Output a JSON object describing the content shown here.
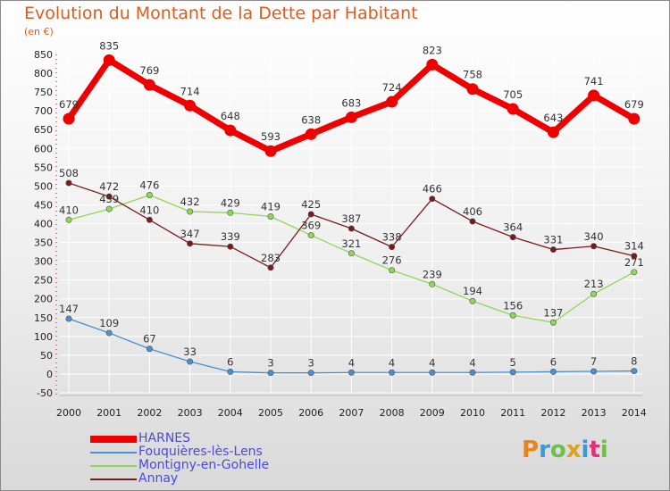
{
  "page": {
    "title": "Evolution du Montant de la Dette par Habitant",
    "subtitle": "(en €)"
  },
  "logo": {
    "text": "Proxiti",
    "colors": [
      "#e8841c",
      "#3a9ad8",
      "#6cc04a",
      "#e0a020",
      "#3a9ad8",
      "#e0307a",
      "#6cc04a"
    ]
  },
  "chart_data": {
    "type": "line",
    "title": "Evolution du Montant de la Dette par Habitant",
    "ylabel": "(en €)",
    "xlabel": "",
    "x": [
      "2000",
      "2001",
      "2002",
      "2003",
      "2004",
      "2005",
      "2006",
      "2007",
      "2008",
      "2009",
      "2010",
      "2011",
      "2012",
      "2013",
      "2014"
    ],
    "ylim": [
      -50,
      850
    ],
    "yticks": [
      "-50",
      "0",
      "50",
      "100",
      "150",
      "200",
      "250",
      "300",
      "350",
      "400",
      "450",
      "500",
      "550",
      "600",
      "650",
      "700",
      "750",
      "800",
      "850"
    ],
    "grid": true,
    "legend_position": "bottom-left",
    "series": [
      {
        "name": "HARNES",
        "color": "#ee0000",
        "values": [
          679,
          835,
          769,
          714,
          648,
          593,
          638,
          683,
          724,
          823,
          758,
          705,
          643,
          741,
          679
        ],
        "labels": [
          "679",
          "835",
          "769",
          "714",
          "648",
          "593",
          "638",
          "683",
          "724",
          "823",
          "758",
          "705",
          "643",
          "741",
          "679"
        ]
      },
      {
        "name": "Fouquières-lès-Lens",
        "color": "#4a90d0",
        "values": [
          147,
          109,
          67,
          33,
          6,
          3,
          3,
          4,
          4,
          4,
          4,
          5,
          6,
          7,
          8
        ],
        "labels": [
          "147",
          "109",
          "67",
          "33",
          "6",
          "3",
          "3",
          "4",
          "4",
          "4",
          "4",
          "5",
          "6",
          "7",
          "8"
        ]
      },
      {
        "name": "Montigny-en-Gohelle",
        "color": "#8fd855",
        "values": [
          410,
          439,
          476,
          432,
          429,
          419,
          369,
          321,
          276,
          239,
          194,
          156,
          137,
          213,
          271
        ],
        "labels": [
          "410",
          "439",
          "476",
          "432",
          "429",
          "419",
          "369",
          "321",
          "276",
          "239",
          "194",
          "156",
          "137",
          "213",
          "271"
        ]
      },
      {
        "name": "Annay",
        "color": "#7a1a1a",
        "values": [
          508,
          472,
          410,
          347,
          339,
          283,
          425,
          387,
          338,
          466,
          406,
          364,
          331,
          340,
          314
        ],
        "labels": [
          "508",
          "472",
          "410",
          "347",
          "339",
          "283",
          "425",
          "387",
          "338",
          "466",
          "406",
          "364",
          "331",
          "340",
          "314"
        ]
      }
    ]
  }
}
